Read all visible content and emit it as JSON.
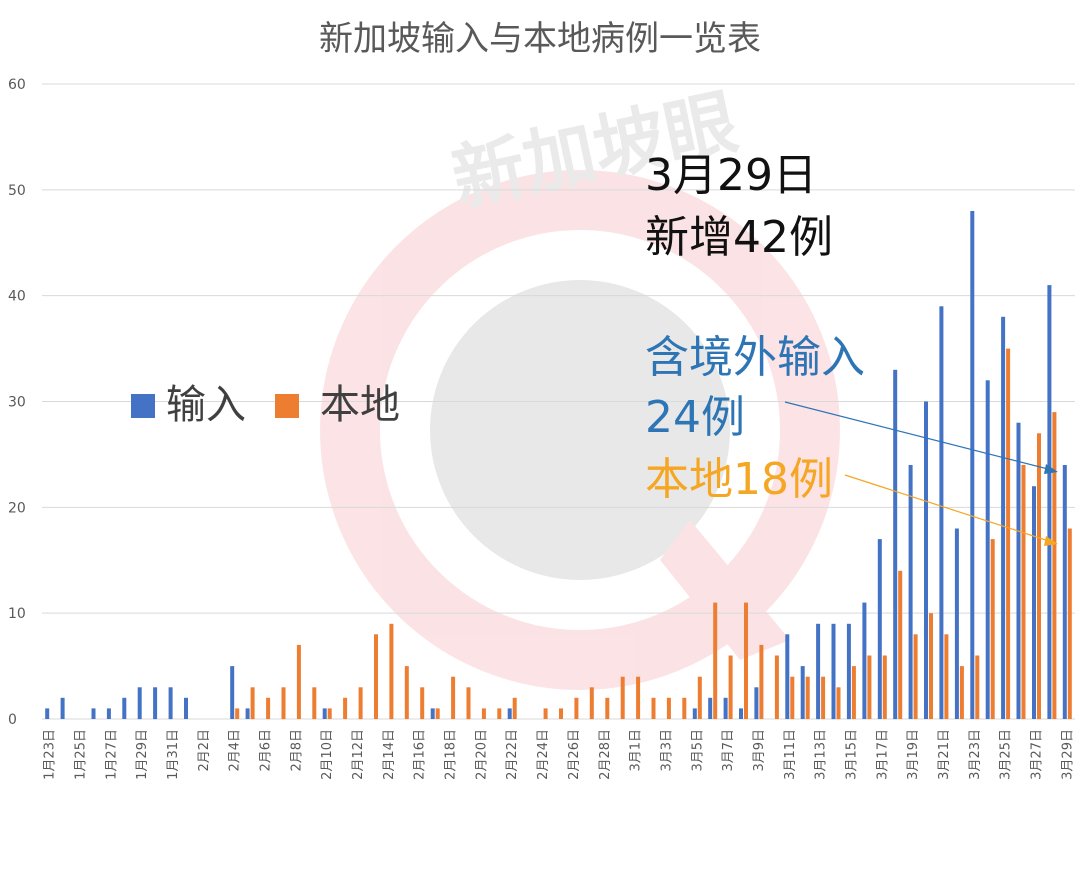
{
  "chart_data": {
    "type": "bar",
    "title": "新加坡输入与本地病例一览表",
    "xlabel": "",
    "ylabel": "",
    "ylim": [
      0,
      60
    ],
    "yticks": [
      0,
      10,
      20,
      30,
      40,
      50,
      60
    ],
    "grid": true,
    "legend_position": "left-middle",
    "categories": [
      "1月23日",
      "1月24日",
      "1月25日",
      "1月26日",
      "1月27日",
      "1月28日",
      "1月29日",
      "1月30日",
      "1月31日",
      "2月1日",
      "2月2日",
      "2月3日",
      "2月4日",
      "2月5日",
      "2月6日",
      "2月7日",
      "2月8日",
      "2月9日",
      "2月10日",
      "2月11日",
      "2月12日",
      "2月13日",
      "2月14日",
      "2月15日",
      "2月16日",
      "2月17日",
      "2月18日",
      "2月19日",
      "2月20日",
      "2月21日",
      "2月22日",
      "2月23日",
      "2月24日",
      "2月25日",
      "2月26日",
      "2月27日",
      "2月28日",
      "2月29日",
      "3月1日",
      "3月2日",
      "3月3日",
      "3月4日",
      "3月5日",
      "3月6日",
      "3月7日",
      "3月8日",
      "3月9日",
      "3月10日",
      "3月11日",
      "3月12日",
      "3月13日",
      "3月14日",
      "3月15日",
      "3月16日",
      "3月17日",
      "3月18日",
      "3月19日",
      "3月20日",
      "3月21日",
      "3月22日",
      "3月23日",
      "3月24日",
      "3月25日",
      "3月26日",
      "3月27日",
      "3月28日",
      "3月29日"
    ],
    "series": [
      {
        "name": "输入",
        "color": "#4472C4",
        "values": [
          1,
          2,
          0,
          1,
          1,
          2,
          3,
          3,
          3,
          2,
          0,
          0,
          5,
          1,
          0,
          0,
          0,
          0,
          1,
          0,
          0,
          0,
          0,
          0,
          0,
          1,
          0,
          0,
          0,
          0,
          1,
          0,
          0,
          0,
          0,
          0,
          0,
          0,
          0,
          0,
          0,
          0,
          1,
          2,
          2,
          1,
          3,
          0,
          8,
          5,
          9,
          9,
          9,
          11,
          17,
          33,
          24,
          30,
          39,
          18,
          48,
          32,
          38,
          28,
          22,
          41,
          24
        ]
      },
      {
        "name": "本地",
        "color": "#ED7D31",
        "values": [
          0,
          0,
          0,
          0,
          0,
          0,
          0,
          0,
          0,
          0,
          0,
          0,
          1,
          3,
          2,
          3,
          7,
          3,
          1,
          2,
          3,
          8,
          9,
          5,
          3,
          1,
          4,
          3,
          1,
          1,
          2,
          0,
          1,
          1,
          2,
          3,
          2,
          4,
          4,
          2,
          2,
          2,
          4,
          11,
          6,
          11,
          7,
          6,
          4,
          4,
          4,
          3,
          5,
          6,
          6,
          14,
          8,
          10,
          8,
          5,
          6,
          17,
          35,
          24,
          27,
          29,
          18
        ]
      }
    ]
  },
  "xtick_labels": [
    "1月23日",
    "1月25日",
    "1月27日",
    "1月29日",
    "1月31日",
    "2月2日",
    "2月4日",
    "2月6日",
    "2月8日",
    "2月10日",
    "2月12日",
    "2月14日",
    "2月16日",
    "2月18日",
    "2月20日",
    "2月22日",
    "2月24日",
    "2月26日",
    "2月28日",
    "3月1日",
    "3月3日",
    "3月5日",
    "3月7日",
    "3月9日",
    "3月11日",
    "3月13日",
    "3月15日",
    "3月17日",
    "3月19日",
    "3月21日",
    "3月23日",
    "3月25日",
    "3月27日",
    "3月29日"
  ],
  "legend": {
    "import_label": "输入",
    "local_label": "本地",
    "import_color": "#4472C4",
    "local_color": "#ED7D31"
  },
  "annotation": {
    "line1": "3月29日",
    "line2": "新增42例",
    "import_line1": "含境外输入",
    "import_line2": "24例",
    "local_line": "本地18例",
    "import_color": "#2E75B6",
    "local_color": "#F5A623"
  },
  "watermark": "新加坡眼"
}
